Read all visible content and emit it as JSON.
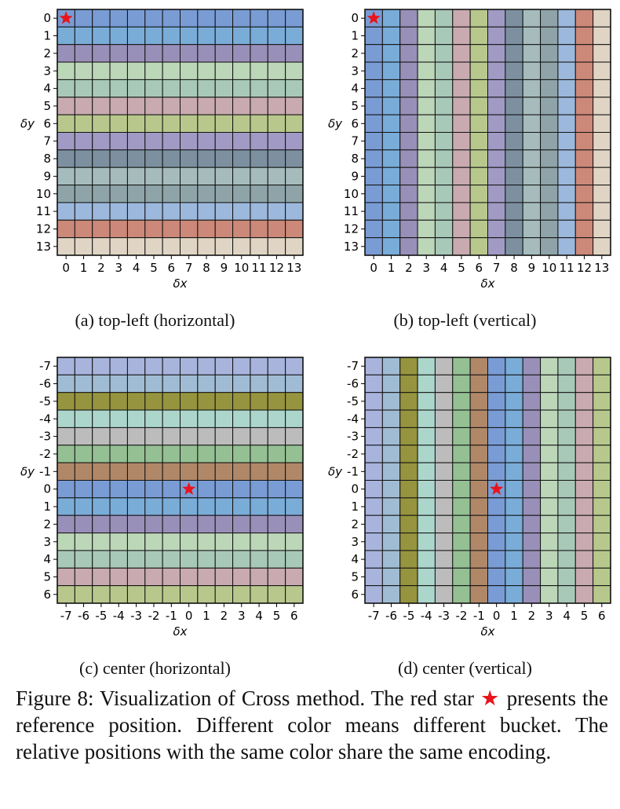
{
  "chart_data": [
    {
      "type": "heatmap",
      "panel_label": "(a) top-left (horizontal)",
      "orientation": "horizontal",
      "x_ticks": [
        "0",
        "1",
        "2",
        "3",
        "4",
        "5",
        "6",
        "7",
        "8",
        "9",
        "10",
        "11",
        "12",
        "13"
      ],
      "y_ticks": [
        "0",
        "1",
        "2",
        "3",
        "4",
        "5",
        "6",
        "7",
        "8",
        "9",
        "10",
        "11",
        "12",
        "13"
      ],
      "xlabel": "δx",
      "ylabel": "δy",
      "bucket_colors": [
        "#7a9cd4",
        "#7aacd8",
        "#9890b8",
        "#bcd6b8",
        "#a8c8b8",
        "#c8aab0",
        "#b8c88c",
        "#a09ac4",
        "#7c90a0",
        "#a6bcbc",
        "#8ea4a8",
        "#9cb8dc",
        "#cc8878",
        "#e0d4c4"
      ],
      "reference": [
        "0",
        "0"
      ]
    },
    {
      "type": "heatmap",
      "panel_label": "(b) top-left (vertical)",
      "orientation": "vertical",
      "x_ticks": [
        "0",
        "1",
        "2",
        "3",
        "4",
        "5",
        "6",
        "7",
        "8",
        "9",
        "10",
        "11",
        "12",
        "13"
      ],
      "y_ticks": [
        "0",
        "1",
        "2",
        "3",
        "4",
        "5",
        "6",
        "7",
        "8",
        "9",
        "10",
        "11",
        "12",
        "13"
      ],
      "xlabel": "δx",
      "ylabel": "δy",
      "bucket_colors": [
        "#7a9cd4",
        "#7aacd8",
        "#9890b8",
        "#bcd6b8",
        "#a8c8b8",
        "#c8aab0",
        "#b8c88c",
        "#a09ac4",
        "#7c90a0",
        "#a6bcbc",
        "#8ea4a8",
        "#9cb8dc",
        "#cc8878",
        "#e0d4c4"
      ],
      "reference": [
        "0",
        "0"
      ]
    },
    {
      "type": "heatmap",
      "panel_label": "(c) center (horizontal)",
      "orientation": "horizontal",
      "x_ticks": [
        "-7",
        "-6",
        "-5",
        "-4",
        "-3",
        "-2",
        "-1",
        "0",
        "1",
        "2",
        "3",
        "4",
        "5",
        "6"
      ],
      "y_ticks": [
        "-7",
        "-6",
        "-5",
        "-4",
        "-3",
        "-2",
        "-1",
        "0",
        "1",
        "2",
        "3",
        "4",
        "5",
        "6"
      ],
      "xlabel": "δx",
      "ylabel": "δy",
      "bucket_colors": [
        "#a8b4dc",
        "#a0bcd4",
        "#96943e",
        "#acd6cc",
        "#bcbcbc",
        "#94c094",
        "#b08868",
        "#7a9cd4",
        "#7aacd8",
        "#9890b8",
        "#bcd6b8",
        "#a8c8b8",
        "#c8aab0",
        "#b8c88c"
      ],
      "reference": [
        "0",
        "0"
      ]
    },
    {
      "type": "heatmap",
      "panel_label": "(d) center (vertical)",
      "orientation": "vertical",
      "x_ticks": [
        "-7",
        "-6",
        "-5",
        "-4",
        "-3",
        "-2",
        "-1",
        "0",
        "1",
        "2",
        "3",
        "4",
        "5",
        "6"
      ],
      "y_ticks": [
        "-7",
        "-6",
        "-5",
        "-4",
        "-3",
        "-2",
        "-1",
        "0",
        "1",
        "2",
        "3",
        "4",
        "5",
        "6"
      ],
      "xlabel": "δx",
      "ylabel": "δy",
      "bucket_colors": [
        "#a8b4dc",
        "#a0bcd4",
        "#96943e",
        "#acd6cc",
        "#bcbcbc",
        "#94c094",
        "#b08868",
        "#7a9cd4",
        "#7aacd8",
        "#9890b8",
        "#bcd6b8",
        "#a8c8b8",
        "#c8aab0",
        "#b8c88c"
      ],
      "reference": [
        "0",
        "0"
      ]
    }
  ],
  "caption": {
    "part1": "Figure 8: Visualization of Cross method. The red star",
    "star": "★",
    "part2": "presents the reference position. Different color means different bucket. The relative positions with the same color share the same encoding."
  },
  "colors": {
    "star": "#e8141b",
    "grid_line": "#111111"
  }
}
